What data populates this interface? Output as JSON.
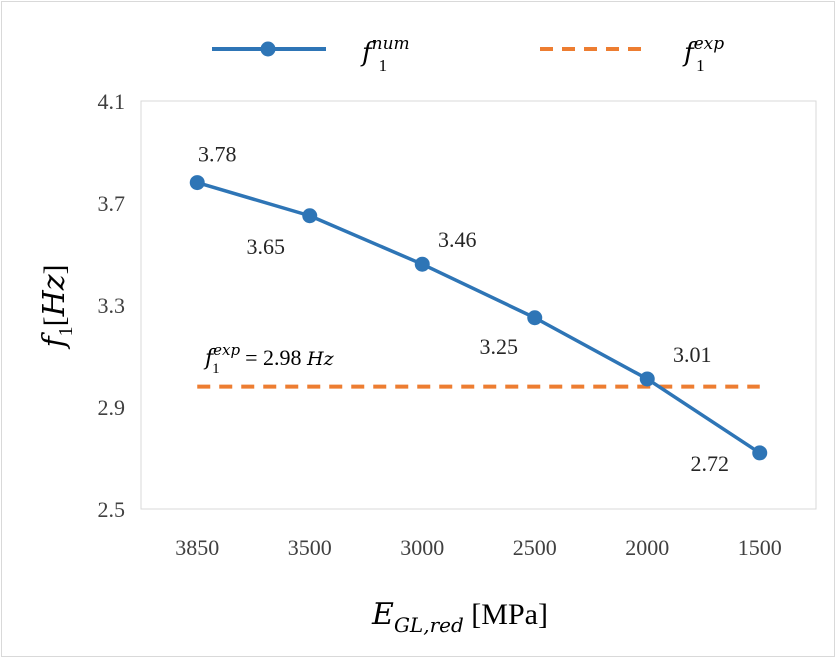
{
  "chart_data": {
    "type": "line",
    "categories": [
      "3850",
      "3500",
      "3000",
      "2500",
      "2000",
      "1500"
    ],
    "series": [
      {
        "name": "f_1^num",
        "name_base": "f",
        "name_sub": "1",
        "name_sup": "num",
        "values": [
          3.78,
          3.65,
          3.46,
          3.25,
          3.01,
          2.72
        ],
        "labels": [
          "3.78",
          "3.65",
          "3.46",
          "3.25",
          "3.01",
          "2.72"
        ],
        "color": "#2e75b6",
        "marker": "circle",
        "line_style": "solid"
      },
      {
        "name": "f_1^exp",
        "name_base": "f",
        "name_sub": "1",
        "name_sup": "exp",
        "values": [
          2.98,
          2.98,
          2.98,
          2.98,
          2.98,
          2.98
        ],
        "color": "#ed7d31",
        "line_style": "dashed"
      }
    ],
    "annotation": {
      "base": "f",
      "sub": "1",
      "sup": "exp",
      "text": " = 2.98 ",
      "unit": "Hz"
    },
    "xlabel": {
      "base": "E",
      "sub": "GL,red",
      "unit": " [MPa]"
    },
    "ylabel": {
      "base": "f",
      "sub": "1",
      "unit_open": "[",
      "unit": "Hz",
      "unit_close": "]"
    },
    "ylim": [
      2.5,
      4.1
    ],
    "yticks": [
      "2.5",
      "2.9",
      "3.3",
      "3.7",
      "4.1"
    ],
    "ytick_values": [
      2.5,
      2.9,
      3.3,
      3.7,
      4.1
    ],
    "grid": false,
    "legend_position": "top"
  }
}
